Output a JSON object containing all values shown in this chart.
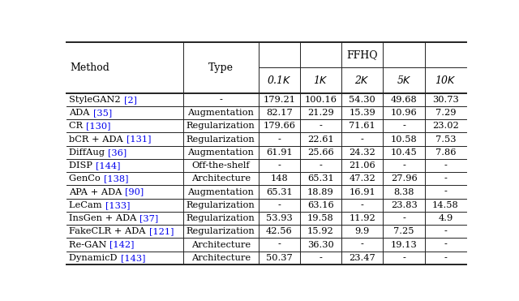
{
  "title": "FFHQ",
  "rows": [
    [
      "StyleGAN2 ",
      "[2]",
      "-",
      "179.21",
      "100.16",
      "54.30",
      "49.68",
      "30.73"
    ],
    [
      "ADA ",
      "[35]",
      "Augmentation",
      "82.17",
      "21.29",
      "15.39",
      "10.96",
      "7.29"
    ],
    [
      "CR ",
      "[130]",
      "Regularization",
      "179.66",
      "-",
      "71.61",
      "-",
      "23.02"
    ],
    [
      "bCR + ADA ",
      "[131]",
      "Regularization",
      "-",
      "22.61",
      "-",
      "10.58",
      "7.53"
    ],
    [
      "DiffAug ",
      "[36]",
      "Augmentation",
      "61.91",
      "25.66",
      "24.32",
      "10.45",
      "7.86"
    ],
    [
      "DISP ",
      "[144]",
      "Off-the-shelf",
      "-",
      "-",
      "21.06",
      "-",
      "-"
    ],
    [
      "GenCo ",
      "[138]",
      "Architecture",
      "148",
      "65.31",
      "47.32",
      "27.96",
      "-"
    ],
    [
      "APA + ADA ",
      "[90]",
      "Augmentation",
      "65.31",
      "18.89",
      "16.91",
      "8.38",
      "-"
    ],
    [
      "LeCam ",
      "[133]",
      "Regularization",
      "-",
      "63.16",
      "-",
      "23.83",
      "14.58"
    ],
    [
      "InsGen + ADA ",
      "[37]",
      "Regularization",
      "53.93",
      "19.58",
      "11.92",
      "-",
      "4.9"
    ],
    [
      "FakeCLR + ADA ",
      "[121]",
      "Regularization",
      "42.56",
      "15.92",
      "9.9",
      "7.25",
      "-"
    ],
    [
      "Re-GAN ",
      "[142]",
      "Architecture",
      "-",
      "36.30",
      "-",
      "19.13",
      "-"
    ],
    [
      "DynamicD ",
      "[143]",
      "Architecture",
      "50.37",
      "-",
      "23.47",
      "-",
      "-"
    ]
  ],
  "bg_color": "#ffffff",
  "text_color": "#000000",
  "ref_color": "#0000ee",
  "figsize": [
    6.4,
    3.71
  ],
  "dpi": 100,
  "font_family": "DejaVu Serif"
}
